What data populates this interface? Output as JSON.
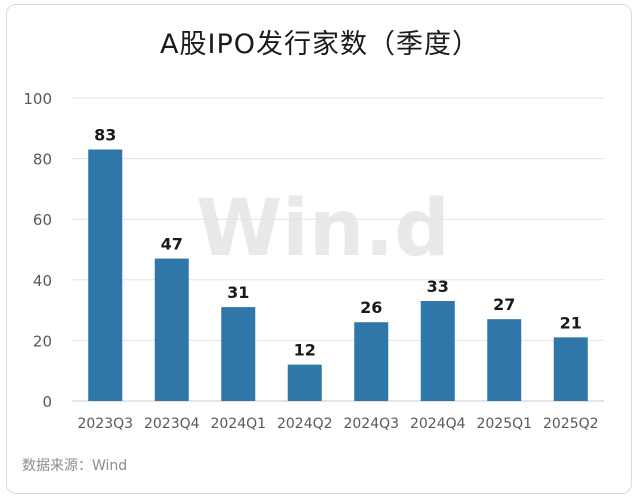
{
  "title": "A股IPO发行家数（季度）",
  "source": "数据来源：Wind",
  "watermark": "Win.d",
  "colors": {
    "bar": "#2f77a8",
    "grid": "#e3e3e3",
    "tick": "#595959",
    "label": "#1a1a1a"
  },
  "chart_data": {
    "type": "bar",
    "title": "A股IPO发行家数（季度）",
    "categories": [
      "2023Q3",
      "2023Q4",
      "2024Q1",
      "2024Q2",
      "2024Q3",
      "2024Q4",
      "2025Q1",
      "2025Q2"
    ],
    "values": [
      83,
      47,
      31,
      12,
      26,
      33,
      27,
      21
    ],
    "xlabel": "",
    "ylabel": "",
    "ylim": [
      0,
      100
    ],
    "yticks": [
      0,
      20,
      40,
      60,
      80,
      100
    ],
    "grid": true,
    "data_labels": true,
    "legend": "none"
  }
}
